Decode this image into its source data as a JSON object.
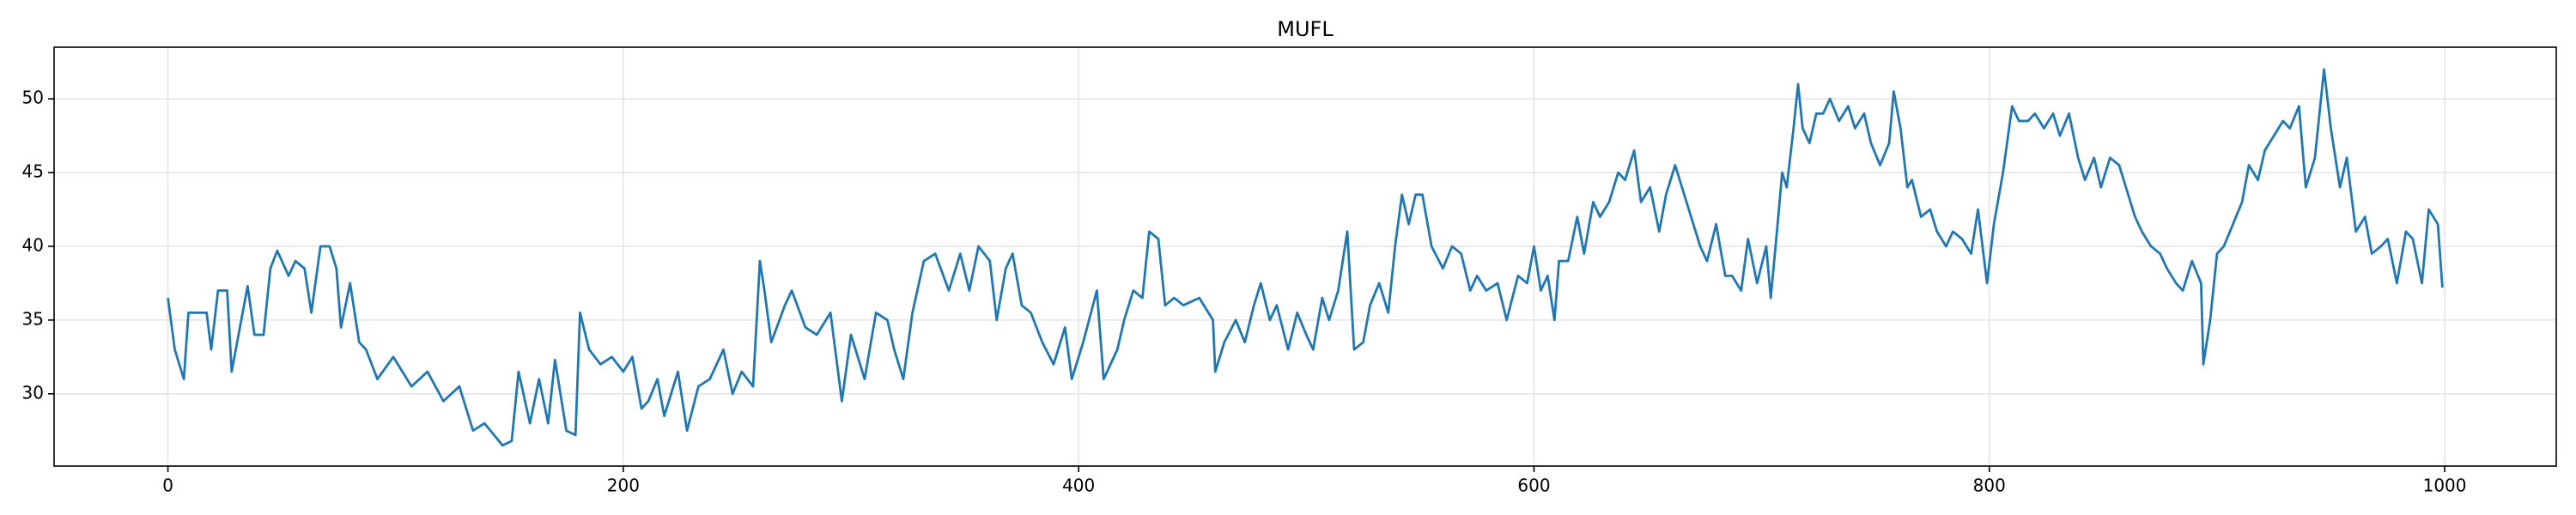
{
  "chart_data": {
    "type": "line",
    "title": "MUFL",
    "x": [
      0,
      3,
      7,
      9,
      17,
      19,
      22,
      26,
      28,
      31,
      35,
      38,
      42,
      45,
      48,
      53,
      56,
      60,
      63,
      67,
      71,
      74,
      76,
      80,
      84,
      87,
      92,
      99,
      107,
      114,
      121,
      128,
      134,
      139,
      147,
      151,
      154,
      159,
      163,
      167,
      170,
      175,
      179,
      181,
      185,
      190,
      195,
      200,
      204,
      208,
      211,
      215,
      218,
      224,
      228,
      233,
      238,
      244,
      248,
      252,
      257,
      260,
      262,
      265,
      271,
      274,
      280,
      285,
      291,
      296,
      300,
      303,
      306,
      311,
      316,
      319,
      323,
      327,
      332,
      337,
      343,
      348,
      352,
      356,
      361,
      364,
      368,
      371,
      375,
      379,
      384,
      389,
      394,
      397,
      402,
      408,
      411,
      417,
      420,
      424,
      428,
      431,
      435,
      438,
      442,
      446,
      453,
      459,
      460,
      464,
      469,
      473,
      477,
      480,
      484,
      487,
      492,
      496,
      500,
      503,
      507,
      510,
      514,
      518,
      521,
      525,
      528,
      532,
      536,
      539,
      542,
      545,
      548,
      551,
      555,
      560,
      564,
      568,
      572,
      575,
      579,
      584,
      588,
      593,
      597,
      600,
      603,
      606,
      609,
      611,
      615,
      619,
      622,
      626,
      629,
      633,
      637,
      640,
      644,
      647,
      651,
      655,
      658,
      662,
      665,
      669,
      673,
      676,
      680,
      684,
      687,
      691,
      694,
      698,
      702,
      704,
      707,
      709,
      711,
      714,
      716,
      718,
      721,
      724,
      727,
      730,
      734,
      738,
      741,
      745,
      748,
      752,
      756,
      758,
      761,
      764,
      766,
      770,
      774,
      777,
      781,
      784,
      788,
      792,
      795,
      799,
      802,
      806,
      810,
      813,
      817,
      820,
      824,
      828,
      831,
      835,
      839,
      842,
      846,
      849,
      853,
      857,
      860,
      864,
      867,
      871,
      875,
      878,
      882,
      885,
      889,
      893,
      894,
      897,
      900,
      903,
      907,
      911,
      914,
      918,
      921,
      925,
      929,
      932,
      936,
      939,
      943,
      947,
      950,
      954,
      957,
      961,
      965,
      968,
      972,
      975,
      979,
      983,
      986,
      990,
      993,
      997,
      999
    ],
    "series": [
      {
        "name": "MUFL",
        "color": "#1f77b4",
        "values": [
          36.5,
          33,
          31,
          35.5,
          35.5,
          33,
          37,
          37,
          31.5,
          34,
          37.3,
          34,
          34,
          38.5,
          39.7,
          38,
          39,
          38.5,
          35.5,
          40,
          40,
          38.5,
          34.5,
          37.5,
          33.5,
          33,
          31,
          32.5,
          30.5,
          31.5,
          29.5,
          30.5,
          27.5,
          28,
          26.5,
          26.8,
          31.5,
          28,
          31,
          28,
          32.3,
          27.5,
          27.2,
          35.5,
          33,
          32,
          32.5,
          31.5,
          32.5,
          29,
          29.5,
          31,
          28.5,
          31.5,
          27.5,
          30.5,
          31,
          33,
          30,
          31.5,
          30.5,
          39,
          37,
          33.5,
          36,
          37,
          34.5,
          34,
          35.5,
          29.5,
          34,
          32.5,
          31,
          35.5,
          35,
          33,
          31,
          35.5,
          39,
          39.5,
          37,
          39.5,
          37,
          40,
          39,
          35,
          38.5,
          39.5,
          36,
          35.5,
          33.5,
          32,
          34.5,
          31,
          33.5,
          37,
          31,
          33,
          35,
          37,
          36.5,
          41,
          40.5,
          36,
          36.5,
          36,
          36.5,
          35,
          31.5,
          33.5,
          35,
          33.5,
          36,
          37.5,
          35,
          36,
          33,
          35.5,
          34,
          33,
          36.5,
          35,
          37,
          41,
          33,
          33.5,
          36,
          37.5,
          35.5,
          40,
          43.5,
          41.5,
          43.5,
          43.5,
          40,
          38.5,
          40,
          39.5,
          37,
          38,
          37,
          37.5,
          35,
          38,
          37.5,
          40,
          37,
          38,
          35,
          39,
          39,
          42,
          39.5,
          43,
          42,
          43,
          45,
          44.5,
          46.5,
          43,
          44,
          41,
          43.5,
          45.5,
          44,
          42,
          40,
          39,
          41.5,
          38,
          38,
          37,
          40.5,
          37.5,
          40,
          36.5,
          41.5,
          45,
          44,
          48,
          51,
          48,
          47,
          49,
          49,
          50,
          48.5,
          49.5,
          48,
          49,
          47,
          45.5,
          47,
          50.5,
          48,
          44,
          44.5,
          42,
          42.5,
          41,
          40,
          41,
          40.5,
          39.5,
          42.5,
          37.5,
          41.5,
          45,
          49.5,
          48.5,
          48.5,
          49,
          48,
          49,
          47.5,
          49,
          46,
          44.5,
          46,
          44,
          46,
          45.5,
          44,
          42,
          41,
          40,
          39.5,
          38.5,
          37.5,
          37,
          39,
          37.5,
          32,
          35,
          39.5,
          40,
          41.5,
          43,
          45.5,
          44.5,
          46.5,
          47.5,
          48.5,
          48,
          49.5,
          44,
          46,
          52,
          48,
          44,
          46,
          41,
          42,
          39.5,
          40,
          40.5,
          37.5,
          41,
          40.5,
          37.5,
          42.5,
          41.5,
          37.2
        ]
      }
    ],
    "xlim": [
      -50,
      1049
    ],
    "ylim": [
      25.1,
      53.5
    ],
    "xticks": [
      0,
      200,
      400,
      600,
      800,
      1000
    ],
    "yticks": [
      30,
      35,
      40,
      45,
      50
    ],
    "grid": true
  }
}
